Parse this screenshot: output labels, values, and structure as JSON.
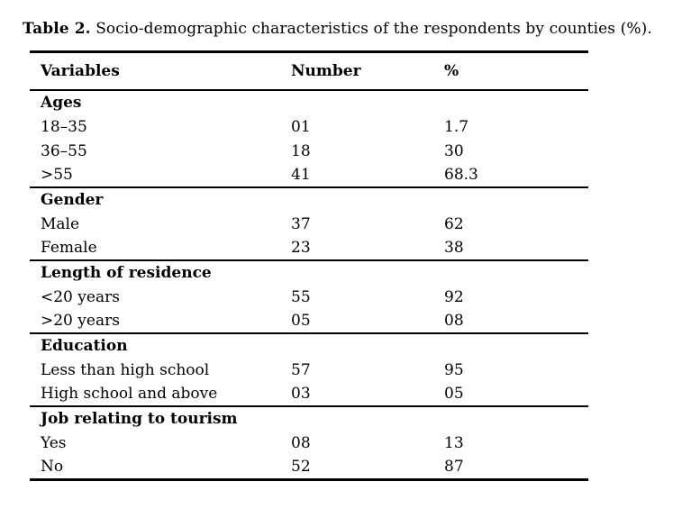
{
  "title": {
    "label": "Table 2.",
    "text": "Socio-demographic characteristics of the respondents by counties (%)."
  },
  "table": {
    "headers": [
      "Variables",
      "Number",
      "%"
    ],
    "sections": [
      {
        "name": "Ages",
        "rows": [
          [
            "18–35",
            "01",
            "1.7"
          ],
          [
            "36–55",
            "18",
            "30"
          ],
          [
            ">55",
            "41",
            "68.3"
          ]
        ]
      },
      {
        "name": "Gender",
        "rows": [
          [
            "Male",
            "37",
            "62"
          ],
          [
            "Female",
            "23",
            "38"
          ]
        ]
      },
      {
        "name": "Length of residence",
        "rows": [
          [
            "<20 years",
            "55",
            "92"
          ],
          [
            ">20 years",
            "05",
            "08"
          ]
        ]
      },
      {
        "name": "Education",
        "rows": [
          [
            "Less than high school",
            "57",
            "95"
          ],
          [
            "High school and above",
            "03",
            "05"
          ]
        ]
      },
      {
        "name": "Job relating to tourism",
        "rows": [
          [
            "Yes",
            "08",
            "13"
          ],
          [
            "No",
            "52",
            "87"
          ]
        ]
      }
    ]
  }
}
